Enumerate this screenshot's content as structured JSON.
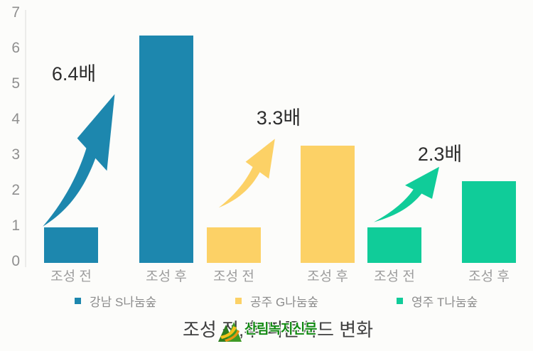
{
  "chart_data": {
    "type": "bar",
    "title": "조성 전,후 피톤치드 변화",
    "categories": [
      "조성 전",
      "조성 후"
    ],
    "series": [
      {
        "name": "강남 S나눔숲",
        "color": "#1d87ae",
        "values": [
          1,
          6.4
        ]
      },
      {
        "name": "공주 G나눔숲",
        "color": "#fcd166",
        "values": [
          1,
          3.3
        ]
      },
      {
        "name": "영주 T나눔숲",
        "color": "#10cc99",
        "values": [
          1,
          2.3
        ]
      }
    ],
    "annotations": [
      "6.4배",
      "3.3배",
      "2.3배"
    ],
    "xlabel": "",
    "ylabel": "",
    "ylim": [
      0,
      7
    ],
    "yticks": [
      "0",
      "1",
      "2",
      "3",
      "4",
      "5",
      "6",
      "7"
    ],
    "grid": false,
    "legend_position": "bottom"
  },
  "watermark": {
    "text": "산림녹지신문",
    "logo": "forest-mountain-logo",
    "color": "#128912"
  }
}
